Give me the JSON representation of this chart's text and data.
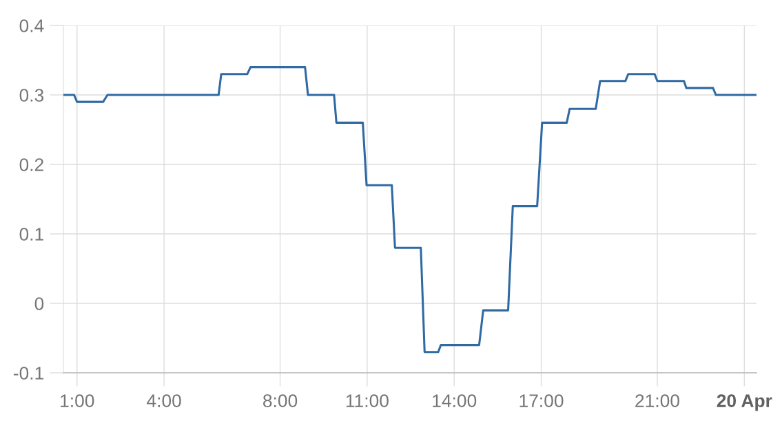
{
  "chart_data": {
    "type": "line",
    "x": [
      0.53,
      0.9,
      1.0,
      1.9,
      2.05,
      5.88,
      5.97,
      6.87,
      6.98,
      8.86,
      8.96,
      9.86,
      9.94,
      10.85,
      10.98,
      11.85,
      11.96,
      12.85,
      12.98,
      13.45,
      13.54,
      14.86,
      15.0,
      15.86,
      16.02,
      16.86,
      17.03,
      17.88,
      17.98,
      18.88,
      19.03,
      19.9,
      20.0,
      20.91,
      21.0,
      21.92,
      22.0,
      22.92,
      23.02,
      24.42
    ],
    "series": [
      {
        "color": "#2f6aa3",
        "values": [
          0.3,
          0.3,
          0.29,
          0.29,
          0.3,
          0.3,
          0.33,
          0.33,
          0.34,
          0.34,
          0.3,
          0.3,
          0.26,
          0.26,
          0.17,
          0.17,
          0.08,
          0.08,
          -0.07,
          -0.07,
          -0.06,
          -0.06,
          -0.01,
          -0.01,
          0.14,
          0.14,
          0.26,
          0.26,
          0.28,
          0.28,
          0.32,
          0.32,
          0.33,
          0.33,
          0.32,
          0.32,
          0.31,
          0.31,
          0.3,
          0.3
        ]
      }
    ],
    "xlim": [
      0.53,
      24.42
    ],
    "ylim": [
      -0.1,
      0.4
    ],
    "xticks": [
      {
        "value": 1,
        "label": "1:00"
      },
      {
        "value": 4,
        "label": "4:00"
      },
      {
        "value": 8,
        "label": "8:00"
      },
      {
        "value": 11,
        "label": "11:00"
      },
      {
        "value": 14,
        "label": "14:00"
      },
      {
        "value": 17,
        "label": "17:00"
      },
      {
        "value": 21,
        "label": "21:00"
      },
      {
        "value": 24,
        "label": "20 Apr"
      }
    ],
    "yticks": [
      -0.1,
      0,
      0.1,
      0.2,
      0.3,
      0.4
    ],
    "grid": true,
    "line_style": "solid"
  }
}
